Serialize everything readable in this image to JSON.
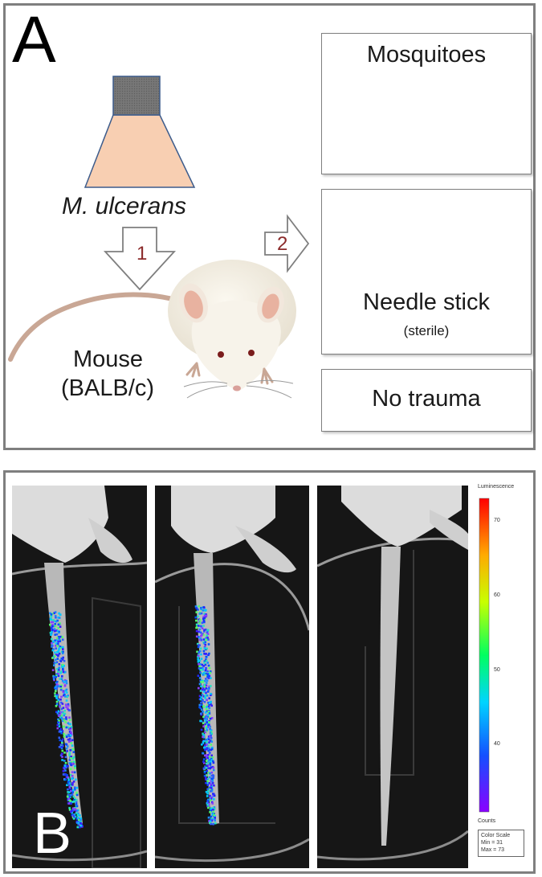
{
  "panel_a": {
    "letter": "A",
    "source_label": "M. ulcerans",
    "arrow1": "1",
    "arrow2": "2",
    "mouse_line1": "Mouse",
    "mouse_line2": "(BALB/c)",
    "boxes": {
      "mosquitoes": "Mosquitoes",
      "needle_stick": "Needle stick",
      "sterile": "(sterile)",
      "no_trauma": "No trauma"
    },
    "colors": {
      "flask_body": "#f8cfb2",
      "flask_cap": "#7f7f7f",
      "arrow_number": "#8b2a2a",
      "needle_hub": "#3fb3b0"
    }
  },
  "panel_b": {
    "letter": "B",
    "color_scale": {
      "title": "Luminescence",
      "ticks": [
        "70",
        "60",
        "50",
        "40"
      ],
      "tick_values": [
        70,
        60,
        50,
        40
      ],
      "units": "Counts",
      "box_title": "Color Scale",
      "min_label": "Min = 31",
      "max_label": "Max = 73",
      "min": 31,
      "max": 73
    }
  }
}
